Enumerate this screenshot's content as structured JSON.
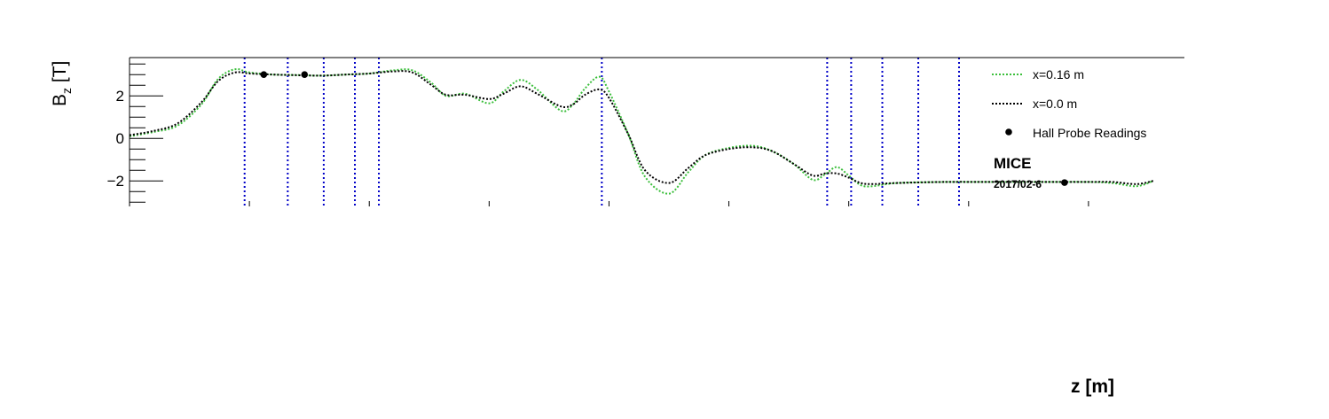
{
  "chart_data": {
    "type": "line",
    "title": "",
    "xlabel": "z [m]",
    "ylabel_main": "B",
    "ylabel_sub": "z",
    "ylabel_unit": " [T]",
    "xlim": [
      -10,
      34
    ],
    "ylim": [
      -3.2,
      3.8
    ],
    "y_ticks": [
      {
        "value": -2,
        "label": "−2"
      },
      {
        "value": 0,
        "label": "0"
      },
      {
        "value": 2,
        "label": "2"
      }
    ],
    "x_major_ticks": [
      -5,
      0,
      5,
      10,
      15,
      20,
      25,
      30
    ],
    "grid": false,
    "legend_position": "top-right",
    "annotation_title": "MICE",
    "annotation_date": "2017/02-6",
    "colors": {
      "green": "#3cbf3c",
      "black": "#000000",
      "blue": "#0000c8"
    },
    "series": [
      {
        "name": "x=0.16 m",
        "color": "#3cbf3c",
        "dash": "dotted",
        "x": [
          -10,
          -9,
          -8,
          -7,
          -6.3,
          -5.6,
          -5,
          -4,
          -3,
          -2,
          -1,
          0,
          1,
          1.8,
          2.6,
          3.2,
          4,
          5,
          5.6,
          6.3,
          7,
          8,
          8.5,
          9,
          9.6,
          10,
          10.8,
          11.5,
          12.5,
          13.3,
          14,
          15,
          16,
          16.8,
          17.7,
          18.5,
          19,
          19.5,
          20,
          20.5,
          21,
          22,
          24,
          26,
          28,
          30,
          31,
          32,
          32.7
        ],
        "y": [
          0.1,
          0.3,
          0.6,
          1.6,
          2.8,
          3.25,
          3.1,
          3.0,
          2.98,
          2.95,
          3.0,
          3.05,
          3.2,
          3.2,
          2.6,
          2.0,
          2.1,
          1.65,
          2.2,
          2.75,
          2.3,
          1.3,
          1.6,
          2.35,
          2.9,
          2.2,
          0.2,
          -1.8,
          -2.6,
          -1.6,
          -0.8,
          -0.45,
          -0.35,
          -0.6,
          -1.2,
          -1.95,
          -1.7,
          -1.35,
          -1.75,
          -2.2,
          -2.25,
          -2.1,
          -2.05,
          -2.05,
          -2.05,
          -2.05,
          -2.1,
          -2.25,
          -2.0
        ]
      },
      {
        "name": "x=0.0 m",
        "color": "#000000",
        "dash": "dotted",
        "x": [
          -10,
          -9,
          -8,
          -7,
          -6.3,
          -5.6,
          -5,
          -4,
          -3,
          -2,
          -1,
          0,
          1,
          1.8,
          2.6,
          3.2,
          4,
          5,
          5.6,
          6.3,
          7,
          8,
          8.5,
          9,
          9.6,
          10,
          10.8,
          11.5,
          12.5,
          13.3,
          14,
          15,
          16,
          16.8,
          17.7,
          18.5,
          19,
          19.5,
          20,
          20.5,
          21,
          22,
          24,
          26,
          28,
          30,
          31,
          32,
          32.7
        ],
        "y": [
          0.15,
          0.35,
          0.7,
          1.7,
          2.7,
          3.1,
          3.05,
          3.0,
          2.97,
          2.95,
          3.0,
          3.05,
          3.15,
          3.1,
          2.5,
          2.05,
          2.05,
          1.85,
          2.1,
          2.45,
          2.1,
          1.5,
          1.6,
          2.05,
          2.3,
          1.9,
          0.2,
          -1.5,
          -2.1,
          -1.4,
          -0.8,
          -0.5,
          -0.42,
          -0.6,
          -1.2,
          -1.75,
          -1.65,
          -1.65,
          -1.85,
          -2.1,
          -2.15,
          -2.1,
          -2.05,
          -2.05,
          -2.05,
          -2.05,
          -2.05,
          -2.15,
          -2.0
        ]
      },
      {
        "name": "Hall Probe Readings",
        "color": "#000000",
        "marker": "circle",
        "x": [
          -4.4,
          -2.7,
          29.0
        ],
        "y": [
          3.0,
          3.0,
          -2.08
        ]
      }
    ],
    "vertical_lines_z": [
      -5.2,
      -3.4,
      -1.9,
      -0.6,
      0.4,
      9.7,
      19.1,
      20.1,
      21.4,
      22.9,
      24.6
    ]
  }
}
